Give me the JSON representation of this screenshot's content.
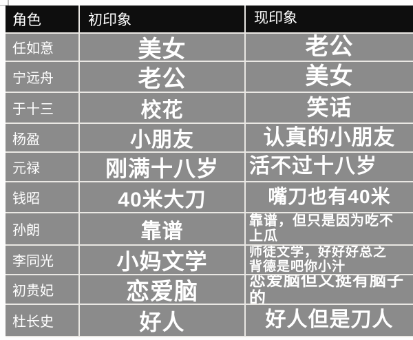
{
  "table": {
    "colors": {
      "header_bg": "#0e0e0e",
      "row_bg": "#8b8b8b",
      "border": "#eae8e4",
      "text": "#ffffff"
    },
    "header": {
      "role": "角色",
      "first": "初印象",
      "now": "现印象"
    },
    "rows": [
      {
        "name": "任如意",
        "first": "美女",
        "now": "老公"
      },
      {
        "name": "宁远舟",
        "first": "老公",
        "now": "美女"
      },
      {
        "name": "于十三",
        "first": "校花",
        "now": "笑话"
      },
      {
        "name": "杨盈",
        "first": "小朋友",
        "now": "认真的小朋友"
      },
      {
        "name": "元禄",
        "first": "刚满十八岁",
        "now": "活不过十八岁"
      },
      {
        "name": "钱昭",
        "first": "40米大刀",
        "now": "嘴刀也有40米"
      },
      {
        "name": "孙朗",
        "first": "靠谱",
        "now": "靠谱，但只是因为吃不\n上瓜"
      },
      {
        "name": "李同光",
        "first": "小妈文学",
        "now": "师徒文学，好好好总之\n背德是吧你小汁"
      },
      {
        "name": "初贵妃",
        "first": "恋爱脑",
        "now": "恋爱脑但又挺有脑子的"
      },
      {
        "name": "杜长史",
        "first": "好人",
        "now": "好人但是刀人"
      }
    ]
  }
}
